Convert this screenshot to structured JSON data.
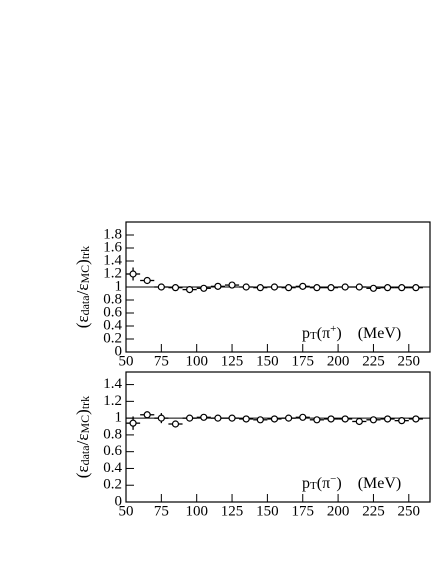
{
  "chart_data": [
    {
      "type": "scatter",
      "y_label": [
        "(ε",
        "data",
        "/ε",
        "MC",
        ")",
        "trk"
      ],
      "annotation": [
        "p",
        "T",
        "(π",
        "+",
        ")",
        "(MeV)"
      ],
      "x": [
        55,
        65,
        75,
        85,
        95,
        105,
        115,
        125,
        135,
        145,
        155,
        165,
        175,
        185,
        195,
        205,
        215,
        225,
        235,
        245,
        255
      ],
      "values": [
        1.2,
        1.1,
        1.0,
        0.99,
        0.96,
        0.98,
        1.01,
        1.03,
        1.0,
        0.99,
        1.0,
        0.99,
        1.01,
        0.99,
        0.99,
        1.0,
        1.0,
        0.98,
        0.99,
        0.99,
        0.99
      ],
      "errors": [
        0.1,
        0.05,
        0.04,
        0.02,
        0.02,
        0.02,
        0.02,
        0.02,
        0.02,
        0.02,
        0.02,
        0.02,
        0.02,
        0.02,
        0.02,
        0.02,
        0.02,
        0.02,
        0.02,
        0.02,
        0.02
      ],
      "xerr": 5,
      "reference_line": 1,
      "xlim": [
        50,
        265
      ],
      "xticks": [
        50,
        75,
        100,
        125,
        150,
        175,
        200,
        225,
        250
      ],
      "ylim": [
        0,
        2
      ],
      "yticks": [
        0,
        0.2,
        0.4,
        0.6,
        0.8,
        1,
        1.2,
        1.4,
        1.6,
        1.8
      ]
    },
    {
      "type": "scatter",
      "y_label": [
        "(ε",
        "data",
        "/ε",
        "MC",
        ")",
        "trk"
      ],
      "annotation": [
        "p",
        "T",
        "(π",
        "−",
        ")",
        "(MeV)"
      ],
      "x": [
        55,
        65,
        75,
        85,
        95,
        105,
        115,
        125,
        135,
        145,
        155,
        165,
        175,
        185,
        195,
        205,
        215,
        225,
        235,
        245,
        255
      ],
      "values": [
        0.94,
        1.04,
        1.0,
        0.93,
        1.0,
        1.01,
        1.0,
        1.0,
        0.99,
        0.98,
        0.99,
        1.0,
        1.01,
        0.98,
        0.99,
        0.99,
        0.96,
        0.98,
        0.99,
        0.97,
        0.99
      ],
      "errors": [
        0.08,
        0.04,
        0.06,
        0.04,
        0.02,
        0.02,
        0.02,
        0.02,
        0.02,
        0.02,
        0.02,
        0.02,
        0.02,
        0.02,
        0.02,
        0.02,
        0.02,
        0.02,
        0.02,
        0.02,
        0.02
      ],
      "xerr": 5,
      "reference_line": 1,
      "xlim": [
        50,
        265
      ],
      "xticks": [
        50,
        75,
        100,
        125,
        150,
        175,
        200,
        225,
        250
      ],
      "ylim": [
        0,
        1.55
      ],
      "yticks": [
        0,
        0.2,
        0.4,
        0.6,
        0.8,
        1,
        1.2,
        1.4
      ]
    }
  ]
}
